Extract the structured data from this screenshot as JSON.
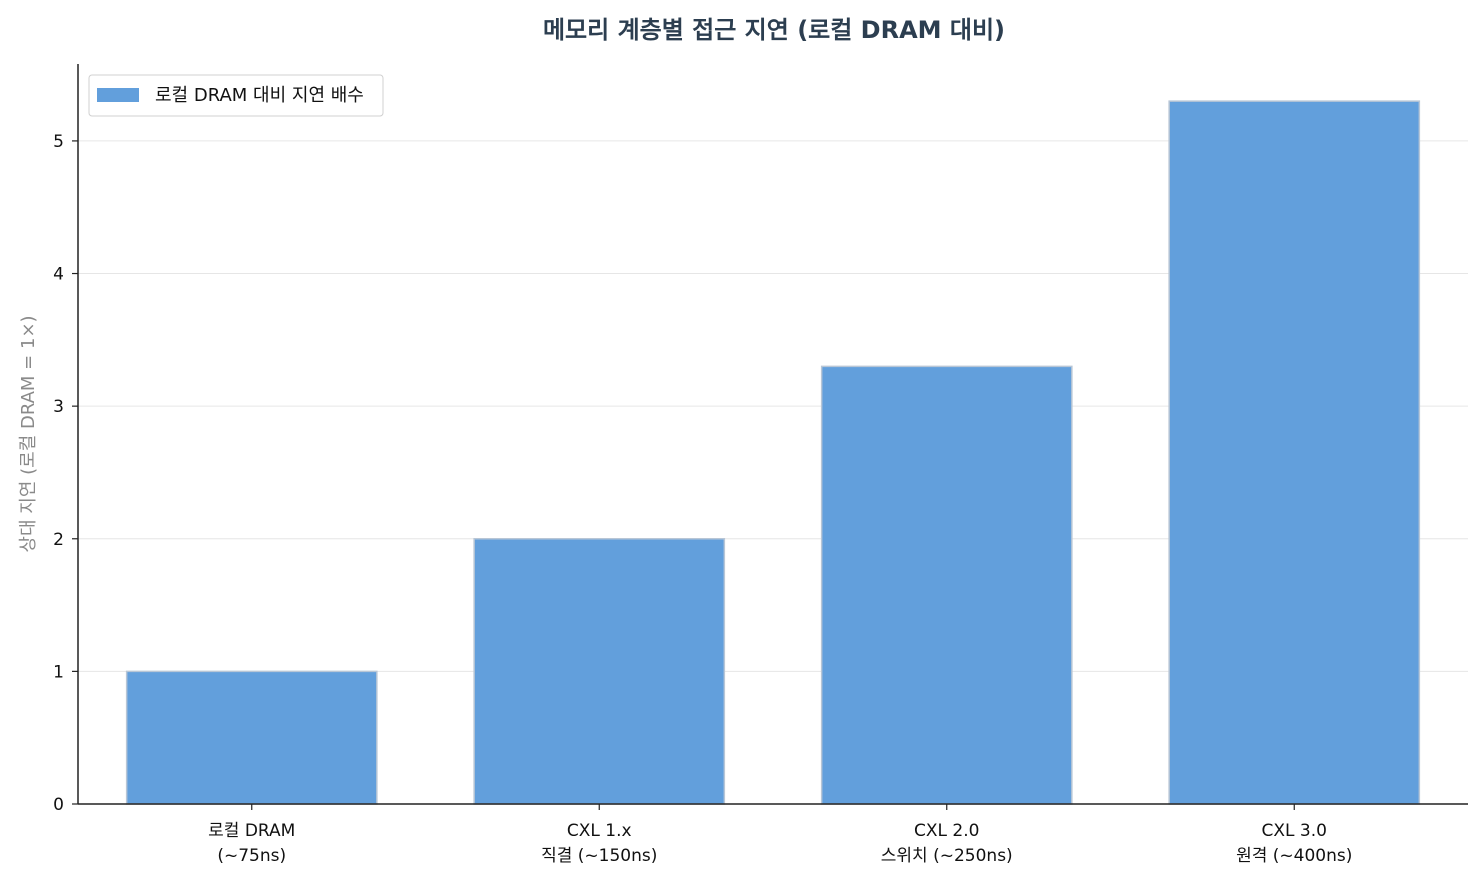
{
  "chart_data": {
    "type": "bar",
    "title": "메모리 계층별 접근 지연 (로컬 DRAM 대비)",
    "ylabel": "상대 지연 (로컬 DRAM = 1×)",
    "xlabel": "",
    "categories": [
      [
        "로컬 DRAM",
        "(~75ns)"
      ],
      [
        "CXL 1.x",
        "직결 (~150ns)"
      ],
      [
        "CXL 2.0",
        "스위치 (~250ns)"
      ],
      [
        "CXL 3.0",
        "원격 (~400ns)"
      ]
    ],
    "series": [
      {
        "name": "로컬 DRAM 대비 지연 배수",
        "values": [
          1.0,
          2.0,
          3.3,
          5.3
        ],
        "color": "#629fdc"
      }
    ],
    "ylim": [
      0,
      5.58
    ],
    "yticks": [
      0,
      1,
      2,
      3,
      4,
      5
    ],
    "grid": "y",
    "legend_position": "top-left"
  }
}
